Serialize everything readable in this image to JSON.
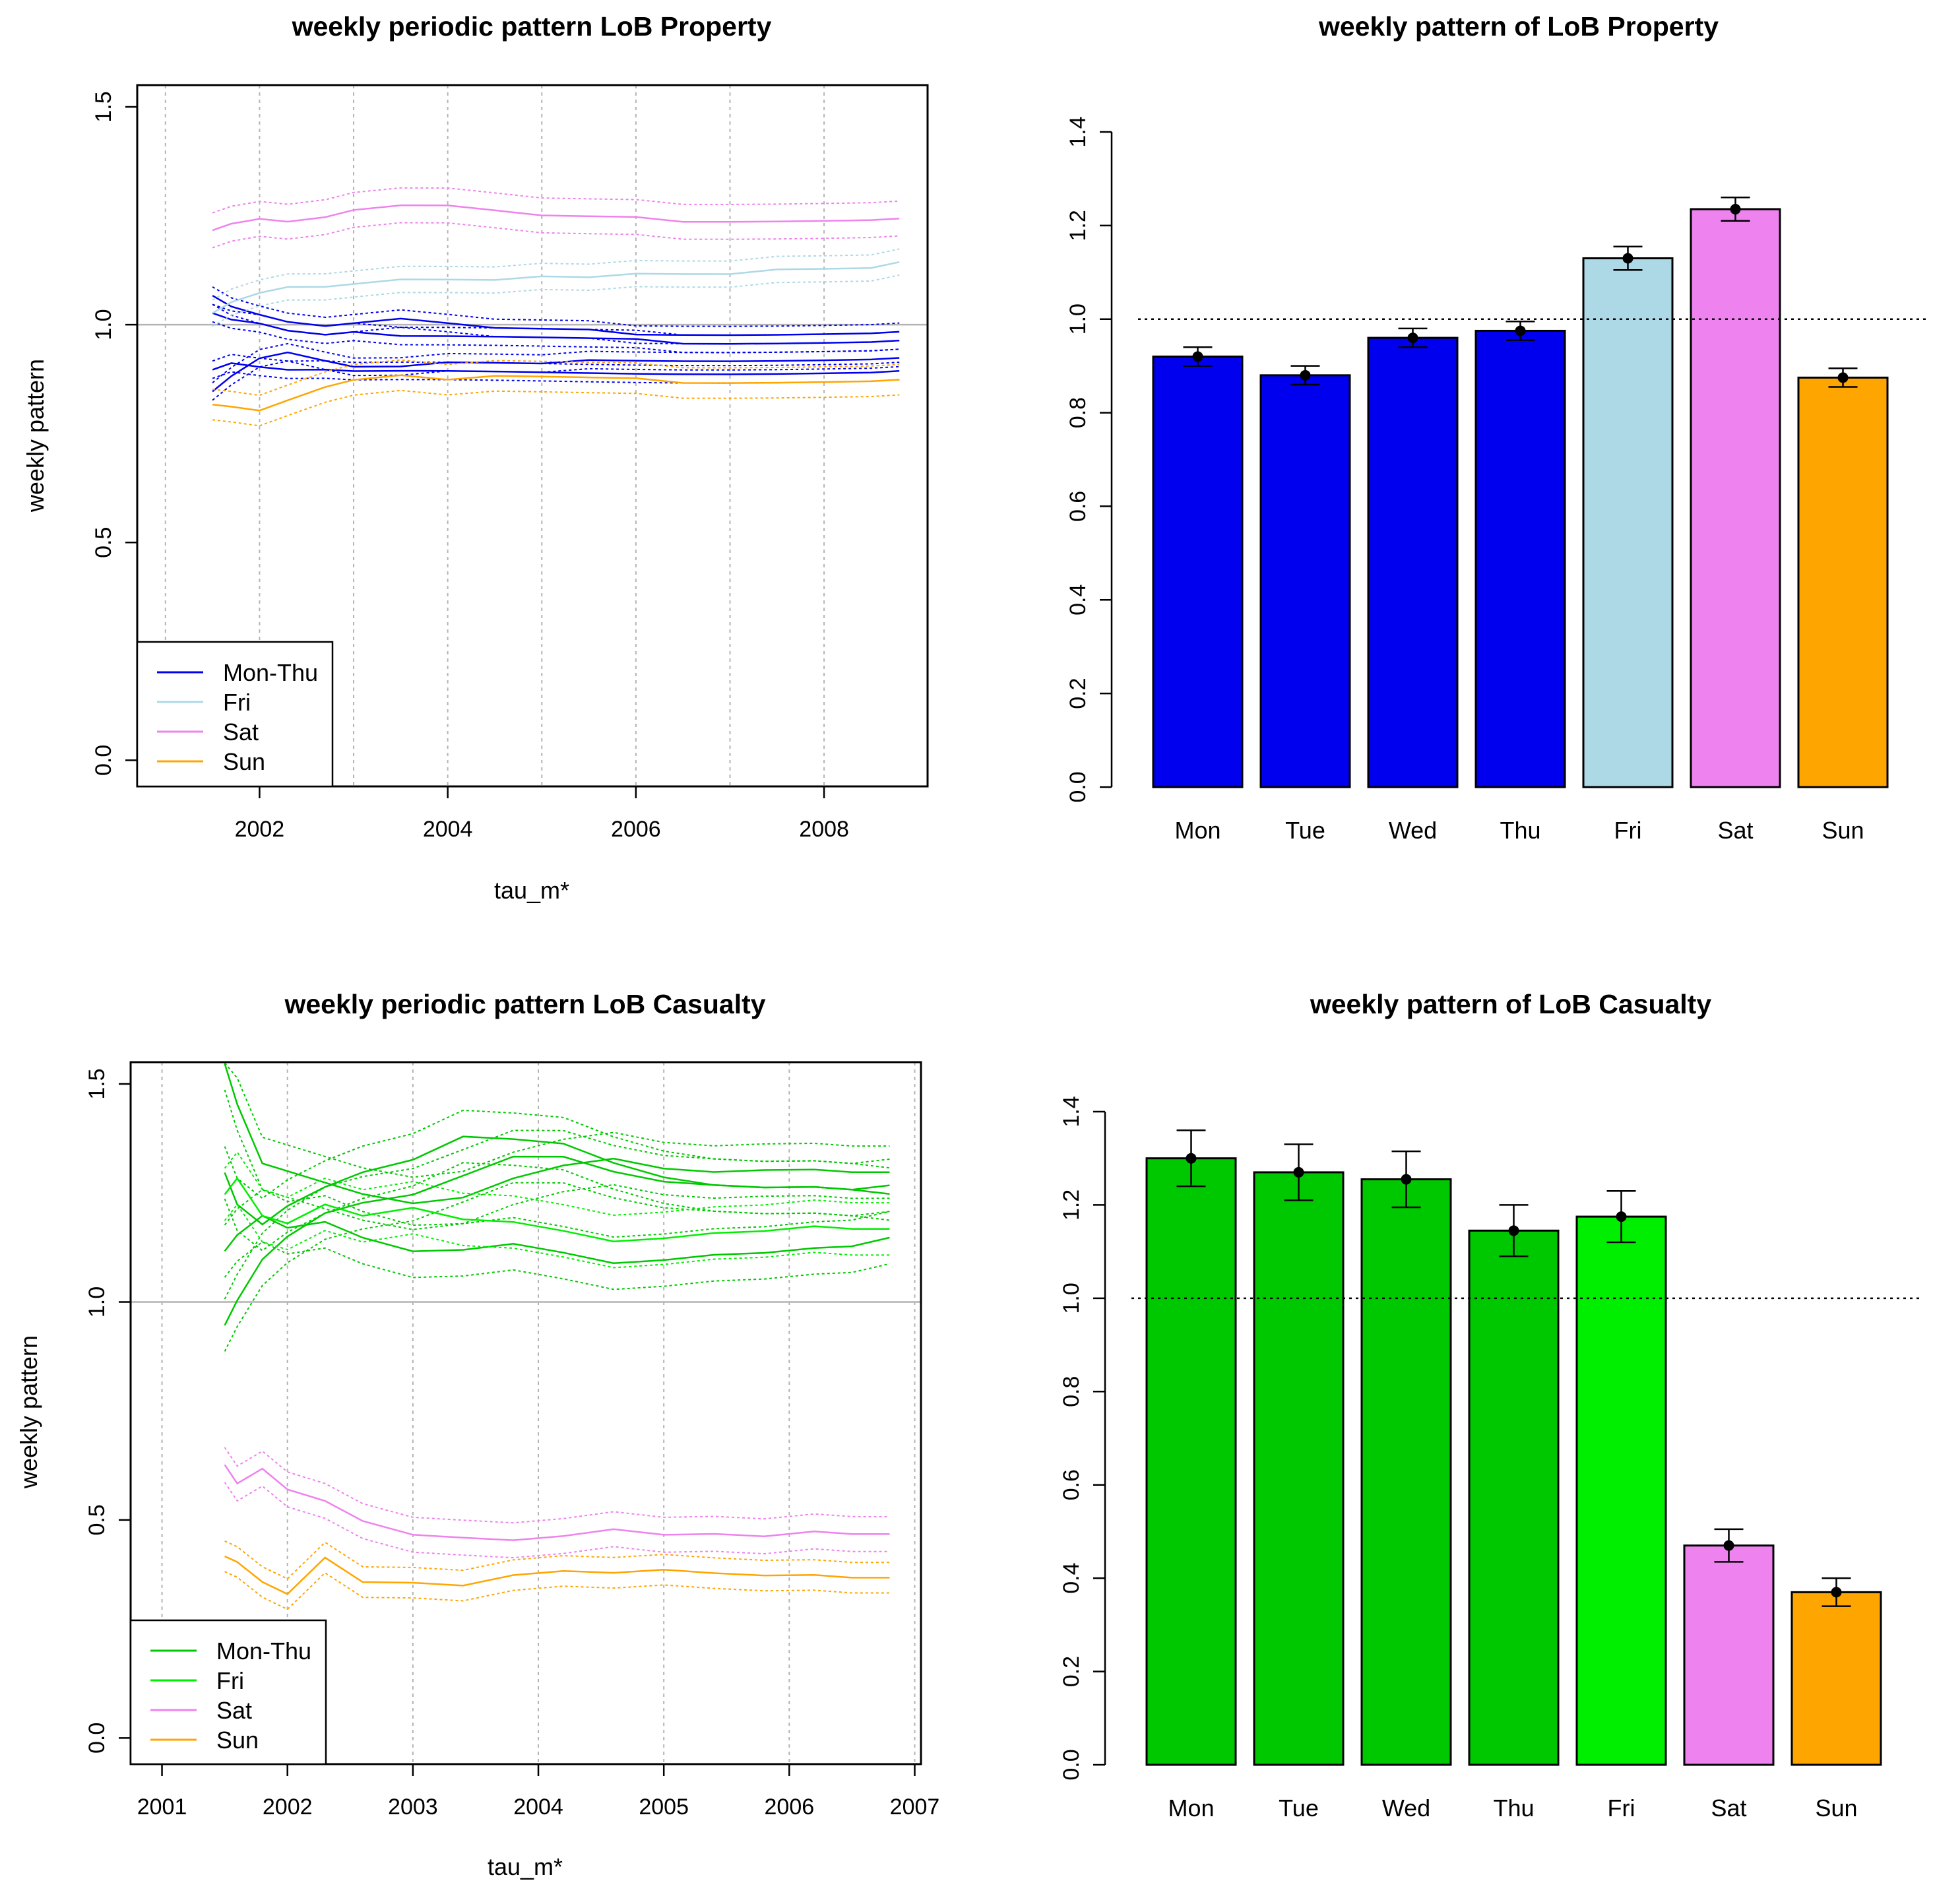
{
  "chart_data": [
    {
      "type": "line",
      "title": "weekly periodic pattern LoB Property",
      "xlabel": "tau_m*",
      "ylabel": "weekly pattern",
      "xlim": [
        2000.7,
        2009.1
      ],
      "ylim": [
        -0.06,
        1.55
      ],
      "xticks": [
        "2002",
        "2004",
        "2006",
        "2008"
      ],
      "xtick_values": [
        2002,
        2004,
        2006,
        2008
      ],
      "yticks": [
        "0.0",
        "0.5",
        "1.0",
        "1.5"
      ],
      "ytick_values": [
        0,
        0.5,
        1.0,
        1.5
      ],
      "vgrid": [
        2001,
        2002,
        2003,
        2004,
        2005,
        2006,
        2007,
        2008
      ],
      "hline": 1.0,
      "legend": {
        "position": "bottom-left",
        "entries": [
          {
            "label": "Mon-Thu",
            "color": "#0000ee"
          },
          {
            "label": "Fri",
            "color": "#add8e6"
          },
          {
            "label": "Sat",
            "color": "#ee82ee"
          },
          {
            "label": "Sun",
            "color": "#ffa500"
          }
        ]
      },
      "x": [
        2001.5,
        2001.7,
        2002.0,
        2002.3,
        2002.7,
        2003.0,
        2003.5,
        2004.0,
        2004.5,
        2005.0,
        2005.5,
        2006.0,
        2006.5,
        2007.0,
        2007.5,
        2008.0,
        2008.5,
        2008.8
      ],
      "series": [
        {
          "name": "Mon",
          "group": "Mon-Thu",
          "color": "#0000ee",
          "band": 0.02,
          "values": [
            0.85,
            0.88,
            0.92,
            0.94,
            0.92,
            0.9,
            0.9,
            0.91,
            0.91,
            0.91,
            0.92,
            0.92,
            0.92,
            0.92,
            0.92,
            0.92,
            0.92,
            0.92
          ]
        },
        {
          "name": "Tue",
          "group": "Mon-Thu",
          "color": "#0000ee",
          "band": 0.02,
          "values": [
            0.9,
            0.91,
            0.9,
            0.9,
            0.9,
            0.89,
            0.89,
            0.89,
            0.89,
            0.89,
            0.89,
            0.89,
            0.89,
            0.89,
            0.89,
            0.89,
            0.89,
            0.89
          ]
        },
        {
          "name": "Wed",
          "group": "Mon-Thu",
          "color": "#0000ee",
          "band": 0.02,
          "values": [
            1.03,
            1.01,
            1.0,
            0.99,
            0.98,
            0.98,
            0.97,
            0.97,
            0.97,
            0.97,
            0.97,
            0.97,
            0.96,
            0.96,
            0.96,
            0.96,
            0.96,
            0.96
          ]
        },
        {
          "name": "Thu",
          "group": "Mon-Thu",
          "color": "#0000ee",
          "band": 0.02,
          "values": [
            1.07,
            1.04,
            1.02,
            1.01,
            1.0,
            1.0,
            1.01,
            1.0,
            0.99,
            0.99,
            0.99,
            0.98,
            0.98,
            0.98,
            0.98,
            0.98,
            0.98,
            0.98
          ]
        },
        {
          "name": "Fri",
          "group": "Fri",
          "color": "#add8e6",
          "band": 0.03,
          "values": [
            1.03,
            1.05,
            1.07,
            1.09,
            1.09,
            1.09,
            1.1,
            1.1,
            1.1,
            1.11,
            1.11,
            1.12,
            1.12,
            1.12,
            1.13,
            1.13,
            1.13,
            1.14
          ]
        },
        {
          "name": "Sat",
          "group": "Sat",
          "color": "#ee82ee",
          "band": 0.04,
          "values": [
            1.22,
            1.23,
            1.24,
            1.24,
            1.25,
            1.26,
            1.27,
            1.27,
            1.26,
            1.25,
            1.25,
            1.25,
            1.24,
            1.24,
            1.24,
            1.24,
            1.24,
            1.24
          ]
        },
        {
          "name": "Sun",
          "group": "Sun",
          "color": "#ffa500",
          "band": 0.035,
          "values": [
            0.82,
            0.81,
            0.8,
            0.83,
            0.86,
            0.87,
            0.88,
            0.87,
            0.88,
            0.88,
            0.88,
            0.88,
            0.87,
            0.87,
            0.87,
            0.87,
            0.87,
            0.87
          ]
        }
      ]
    },
    {
      "type": "bar",
      "title": "weekly pattern of LoB Property",
      "categories": [
        "Mon",
        "Tue",
        "Wed",
        "Thu",
        "Fri",
        "Sat",
        "Sun"
      ],
      "values": [
        0.92,
        0.88,
        0.96,
        0.975,
        1.13,
        1.235,
        0.875
      ],
      "error": [
        0.02,
        0.02,
        0.02,
        0.02,
        0.025,
        0.025,
        0.02
      ],
      "colors": [
        "#0000ee",
        "#0000ee",
        "#0000ee",
        "#0000ee",
        "#add8e6",
        "#ee82ee",
        "#ffa500"
      ],
      "ylim": [
        0,
        1.4
      ],
      "yticks": [
        "0.0",
        "0.2",
        "0.4",
        "0.6",
        "0.8",
        "1.0",
        "1.2",
        "1.4"
      ],
      "ytick_values": [
        0,
        0.2,
        0.4,
        0.6,
        0.8,
        1.0,
        1.2,
        1.4
      ],
      "hline": 1.0
    },
    {
      "type": "line",
      "title": "weekly periodic pattern LoB Casualty",
      "xlabel": "tau_m*",
      "ylabel": "weekly pattern",
      "xlim": [
        2000.75,
        2007.05
      ],
      "ylim": [
        -0.06,
        1.55
      ],
      "xticks": [
        "2001",
        "2002",
        "2003",
        "2004",
        "2005",
        "2006",
        "2007"
      ],
      "xtick_values": [
        2001,
        2002,
        2003,
        2004,
        2005,
        2006,
        2007
      ],
      "yticks": [
        "0.0",
        "0.5",
        "1.0",
        "1.5"
      ],
      "ytick_values": [
        0,
        0.5,
        1.0,
        1.5
      ],
      "vgrid": [
        2001,
        2002,
        2003,
        2004,
        2005,
        2006,
        2007
      ],
      "hline": 1.0,
      "legend": {
        "position": "bottom-left",
        "entries": [
          {
            "label": "Mon-Thu",
            "color": "#00c800"
          },
          {
            "label": "Fri",
            "color": "#00ee00"
          },
          {
            "label": "Sat",
            "color": "#ee82ee"
          },
          {
            "label": "Sun",
            "color": "#ffa500"
          }
        ]
      },
      "x": [
        2001.5,
        2001.6,
        2001.8,
        2002.0,
        2002.3,
        2002.6,
        2003.0,
        2003.4,
        2003.8,
        2004.2,
        2004.6,
        2005.0,
        2005.4,
        2005.8,
        2006.2,
        2006.5,
        2006.8
      ],
      "series": [
        {
          "name": "Mon",
          "group": "Mon-Thu",
          "color": "#00c800",
          "band": 0.06,
          "values": [
            1.55,
            1.45,
            1.32,
            1.3,
            1.27,
            1.25,
            1.23,
            1.24,
            1.28,
            1.31,
            1.33,
            1.31,
            1.3,
            1.3,
            1.3,
            1.3,
            1.3
          ]
        },
        {
          "name": "Tue",
          "group": "Mon-Thu",
          "color": "#00c800",
          "band": 0.06,
          "values": [
            1.3,
            1.22,
            1.18,
            1.22,
            1.26,
            1.3,
            1.33,
            1.38,
            1.37,
            1.36,
            1.32,
            1.29,
            1.27,
            1.26,
            1.26,
            1.26,
            1.27
          ]
        },
        {
          "name": "Wed",
          "group": "Mon-Thu",
          "color": "#00c800",
          "band": 0.06,
          "values": [
            0.95,
            1.0,
            1.1,
            1.15,
            1.2,
            1.23,
            1.25,
            1.29,
            1.33,
            1.33,
            1.3,
            1.28,
            1.27,
            1.26,
            1.26,
            1.26,
            1.25
          ]
        },
        {
          "name": "Thu",
          "group": "Mon-Thu",
          "color": "#00c800",
          "band": 0.06,
          "values": [
            1.12,
            1.15,
            1.2,
            1.17,
            1.18,
            1.15,
            1.12,
            1.12,
            1.13,
            1.11,
            1.09,
            1.1,
            1.11,
            1.11,
            1.12,
            1.13,
            1.15
          ]
        },
        {
          "name": "Fri",
          "group": "Fri",
          "color": "#00ee00",
          "band": 0.06,
          "values": [
            1.25,
            1.28,
            1.2,
            1.18,
            1.22,
            1.2,
            1.22,
            1.19,
            1.18,
            1.16,
            1.14,
            1.15,
            1.16,
            1.16,
            1.17,
            1.17,
            1.17
          ]
        },
        {
          "name": "Sat",
          "group": "Sat",
          "color": "#ee82ee",
          "band": 0.04,
          "values": [
            0.63,
            0.58,
            0.62,
            0.57,
            0.54,
            0.5,
            0.47,
            0.46,
            0.45,
            0.46,
            0.48,
            0.47,
            0.47,
            0.46,
            0.47,
            0.47,
            0.47
          ]
        },
        {
          "name": "Sun",
          "group": "Sun",
          "color": "#ffa500",
          "band": 0.035,
          "values": [
            0.42,
            0.4,
            0.36,
            0.33,
            0.41,
            0.36,
            0.36,
            0.35,
            0.37,
            0.38,
            0.38,
            0.39,
            0.38,
            0.37,
            0.37,
            0.37,
            0.37
          ]
        }
      ]
    },
    {
      "type": "bar",
      "title": "weekly pattern of LoB Casualty",
      "categories": [
        "Mon",
        "Tue",
        "Wed",
        "Thu",
        "Fri",
        "Sat",
        "Sun"
      ],
      "values": [
        1.3,
        1.27,
        1.255,
        1.145,
        1.175,
        0.47,
        0.37
      ],
      "error": [
        0.06,
        0.06,
        0.06,
        0.055,
        0.055,
        0.035,
        0.03
      ],
      "colors": [
        "#00c800",
        "#00c800",
        "#00c800",
        "#00c800",
        "#00ee00",
        "#ee82ee",
        "#ffa500"
      ],
      "ylim": [
        0,
        1.4
      ],
      "yticks": [
        "0.0",
        "0.2",
        "0.4",
        "0.6",
        "0.8",
        "1.0",
        "1.2",
        "1.4"
      ],
      "ytick_values": [
        0,
        0.2,
        0.4,
        0.6,
        0.8,
        1.0,
        1.2,
        1.4
      ],
      "hline": 1.0
    }
  ]
}
